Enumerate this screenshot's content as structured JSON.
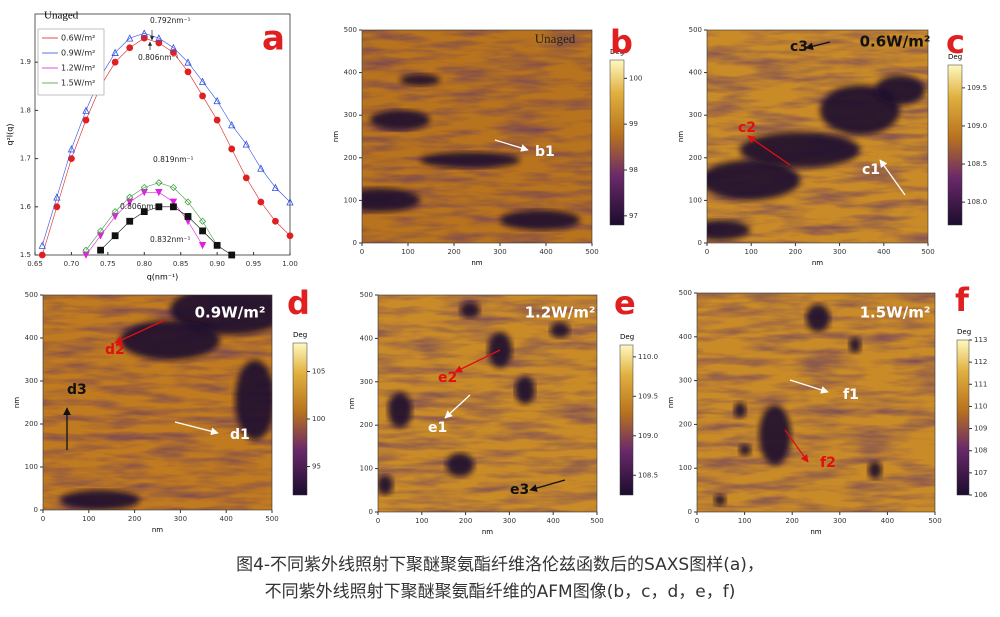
{
  "chart_data": {
    "type": "scatter",
    "panel_letter": "a",
    "header": "Unaged",
    "x_label": "q(nm⁻¹)",
    "y_label": "q²I(q)",
    "x": [
      0.66,
      0.68,
      0.7,
      0.72,
      0.74,
      0.76,
      0.78,
      0.8,
      0.82,
      0.84,
      0.86,
      0.88,
      0.9,
      0.92,
      0.94,
      0.96,
      0.98,
      1.0
    ],
    "series": [
      {
        "name": "0.6W/m²",
        "color": "#e02020",
        "marker": "circle",
        "values": [
          1.5,
          1.6,
          1.7,
          1.78,
          1.85,
          1.9,
          1.93,
          1.95,
          1.94,
          1.92,
          1.88,
          1.83,
          1.78,
          1.72,
          1.66,
          1.61,
          1.57,
          1.54
        ]
      },
      {
        "name": "0.9W/m²",
        "color": "#3050e0",
        "marker": "triangle",
        "values": [
          1.52,
          1.62,
          1.72,
          1.8,
          1.87,
          1.92,
          1.95,
          1.96,
          1.95,
          1.93,
          1.9,
          1.86,
          1.82,
          1.77,
          1.73,
          1.68,
          1.64,
          1.61
        ]
      },
      {
        "name": "1.2W/m²",
        "color": "#e020e0",
        "marker": "triangle-down",
        "values": [
          null,
          null,
          null,
          1.5,
          1.54,
          1.58,
          1.61,
          1.63,
          1.63,
          1.61,
          1.57,
          1.52,
          null,
          null,
          null,
          null,
          null,
          null
        ]
      },
      {
        "name": "1.5W/m²",
        "color": "#40a040",
        "marker": "diamond",
        "values": [
          null,
          null,
          null,
          1.51,
          1.55,
          1.59,
          1.62,
          1.64,
          1.65,
          1.64,
          1.61,
          1.57,
          1.52,
          null,
          null,
          null,
          null,
          null
        ]
      },
      {
        "color": "#111111",
        "marker": "square",
        "values": [
          null,
          null,
          null,
          null,
          1.51,
          1.54,
          1.57,
          1.59,
          1.6,
          1.6,
          1.58,
          1.55,
          1.52,
          1.5,
          null,
          null,
          null,
          null
        ]
      }
    ],
    "annotations": [
      "0.792nm⁻¹",
      "0.806nm⁻¹",
      "0.819nm⁻¹",
      "0.806nm⁻¹",
      "0.832nm⁻¹"
    ],
    "xlim": [
      0.65,
      1.0
    ],
    "ylim": [
      1.5,
      2.0
    ],
    "xticks": [
      0.65,
      {
        "value": 0.7,
        "label": "0.70"
      },
      0.75,
      {
        "value": 0.8,
        "label": "0.80"
      },
      0.85,
      {
        "value": 0.9,
        "label": "0.90"
      },
      0.95,
      {
        "value": 1.0,
        "label": "1.00"
      }
    ],
    "yticks": [
      1.5,
      1.6,
      1.7,
      1.8,
      1.9
    ]
  },
  "afm_panels": [
    {
      "letter": "b",
      "condition": "Unaged",
      "axis_label": "nm",
      "xlim": [
        0,
        500
      ],
      "xticks": [
        0,
        100,
        200,
        300,
        400,
        500
      ],
      "yticks": [
        0,
        100,
        200,
        300,
        400,
        500
      ],
      "colorbar": {
        "title": "Deg",
        "clim": [
          96.8,
          100.4
        ],
        "ticks": [
          97,
          98,
          99,
          100
        ]
      },
      "annotations": [
        "b1"
      ]
    },
    {
      "letter": "c",
      "condition": "0.6W/m²",
      "axis_label": "nm",
      "xlim": [
        0,
        500
      ],
      "xticks": [
        0,
        100,
        200,
        300,
        400,
        500
      ],
      "yticks": [
        0,
        100,
        200,
        300,
        400,
        500
      ],
      "colorbar": {
        "title": "Deg",
        "clim": [
          107.7,
          109.8
        ],
        "ticks": [
          {
            "value": 108,
            "label": "108.0"
          },
          108.5,
          {
            "value": 109,
            "label": "109.0"
          },
          109.5
        ]
      },
      "annotations": [
        "c1",
        "c2",
        "c3"
      ]
    },
    {
      "letter": "d",
      "condition": "0.9W/m²",
      "axis_label": "nm",
      "xlim": [
        0,
        500
      ],
      "xticks": [
        0,
        100,
        200,
        300,
        400,
        500
      ],
      "yticks": [
        0,
        100,
        200,
        300,
        400,
        500
      ],
      "colorbar": {
        "title": "Deg",
        "clim": [
          92,
          108
        ],
        "ticks": [
          95,
          100,
          105
        ]
      },
      "annotations": [
        "d1",
        "d2",
        "d3"
      ]
    },
    {
      "letter": "e",
      "condition": "1.2W/m²",
      "axis_label": "nm",
      "xlim": [
        0,
        500
      ],
      "xticks": [
        0,
        100,
        200,
        300,
        400,
        500
      ],
      "yticks": [
        0,
        100,
        200,
        300,
        400,
        500
      ],
      "colorbar": {
        "title": "Deg",
        "clim": [
          108.25,
          110.15
        ],
        "ticks": [
          108.5,
          {
            "value": 109,
            "label": "109.0"
          },
          109.5,
          {
            "value": 110,
            "label": "110.0"
          }
        ]
      },
      "annotations": [
        "e1",
        "e2",
        "e3"
      ]
    },
    {
      "letter": "f",
      "condition": "1.5W/m²",
      "axis_label": "nm",
      "xlim": [
        0,
        500
      ],
      "xticks": [
        0,
        100,
        200,
        300,
        400,
        500
      ],
      "yticks": [
        0,
        100,
        200,
        300,
        400,
        500
      ],
      "colorbar": {
        "title": "Deg",
        "clim": [
          106,
          113
        ],
        "ticks": [
          106,
          107,
          108,
          109,
          110,
          111,
          112,
          113
        ]
      },
      "annotations": [
        "f1",
        "f2"
      ]
    }
  ],
  "caption": [
    "图4-不同紫外线照射下聚醚聚氨酯纤维洛伦兹函数后的SAXS图样(a)，",
    "不同紫外线照射下聚醚聚氨酯纤维的AFM图像(b，c，d，e，f)"
  ]
}
